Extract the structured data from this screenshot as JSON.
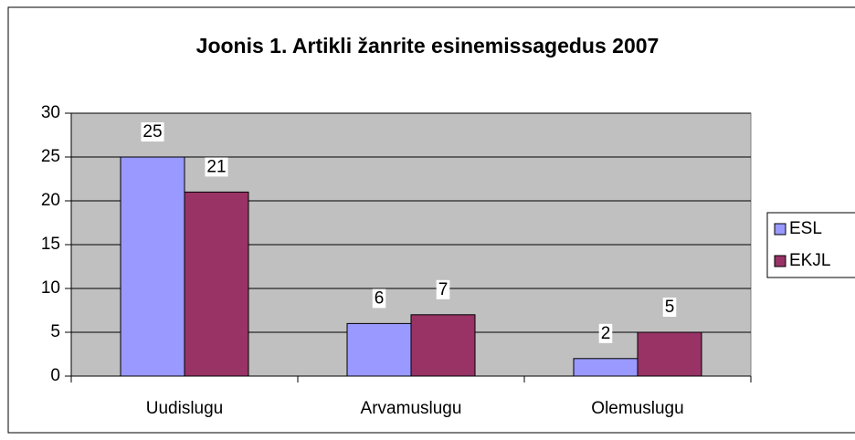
{
  "chart_data": {
    "type": "bar",
    "title": "Joonis 1. Artikli žanrite esinemissagedus 2007",
    "categories": [
      "Uudislugu",
      "Arvamuslugu",
      "Olemuslugu"
    ],
    "series": [
      {
        "name": "ESL",
        "color": "#9999ff",
        "values": [
          25,
          6,
          2
        ]
      },
      {
        "name": "EKJL",
        "color": "#993366",
        "values": [
          21,
          7,
          5
        ]
      }
    ],
    "ylim": [
      0,
      30
    ],
    "yticks": [
      0,
      5,
      10,
      15,
      20,
      25,
      30
    ],
    "grid": true,
    "legend": "right"
  }
}
